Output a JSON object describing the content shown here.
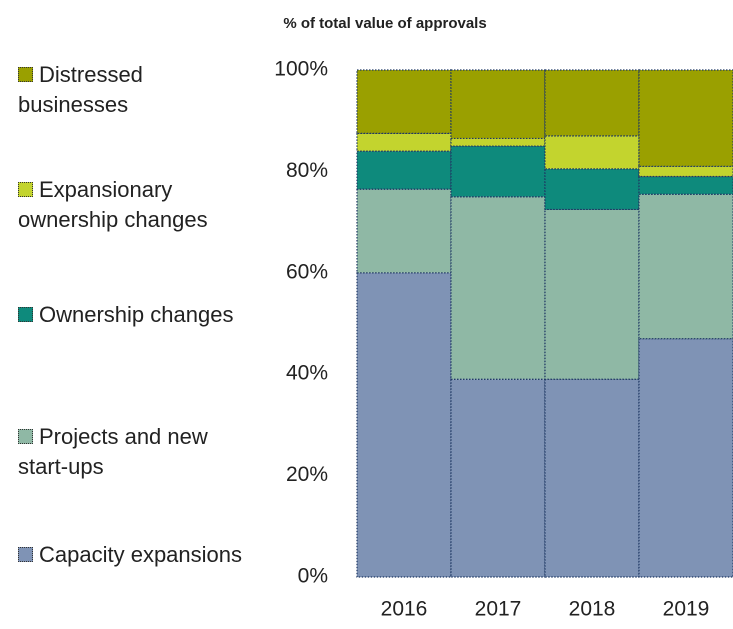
{
  "chart_data": {
    "type": "stacked_bar",
    "title": "% of total value of approvals",
    "categories": [
      "2016",
      "2017",
      "2018",
      "2019"
    ],
    "series": [
      {
        "name": "Capacity expansions",
        "color": "#7f93b5",
        "values": [
          60,
          39,
          39,
          47
        ]
      },
      {
        "name": "Projects and new start-ups",
        "color": "#8fb8a5",
        "values": [
          16.5,
          36,
          33.5,
          28.5
        ]
      },
      {
        "name": "Ownership changes",
        "color": "#0e8a7c",
        "values": [
          7.5,
          10,
          8,
          3.5
        ]
      },
      {
        "name": "Expansionary ownership changes",
        "color": "#c3d42e",
        "values": [
          3.5,
          1.5,
          6.5,
          2
        ]
      },
      {
        "name": "Distressed businesses",
        "color": "#9aa000",
        "values": [
          12.5,
          13.5,
          13,
          19
        ]
      }
    ],
    "ylim": [
      0,
      100
    ],
    "yticks": [
      {
        "value": 0,
        "label": "0%"
      },
      {
        "value": 20,
        "label": "20%"
      },
      {
        "value": 40,
        "label": "40%"
      },
      {
        "value": 60,
        "label": "60%"
      },
      {
        "value": 80,
        "label": "80%"
      },
      {
        "value": 100,
        "label": "100%"
      }
    ],
    "legend": "left"
  }
}
